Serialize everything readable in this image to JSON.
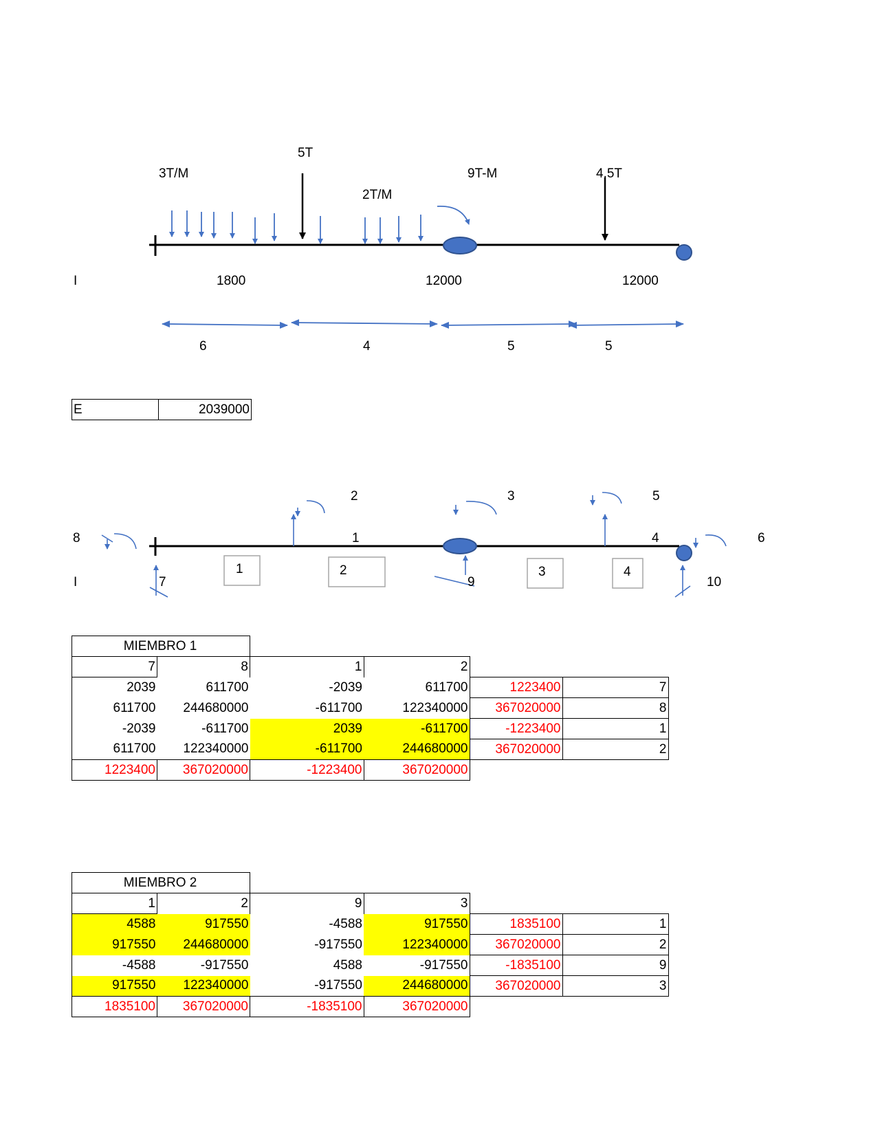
{
  "diagram1": {
    "load_3tm": "3T/M",
    "load_5t": "5T",
    "load_2tm": "2T/M",
    "load_9tm": "9T-M",
    "load_45t": "4.5T",
    "i_label": "I",
    "inertia_1": "1800",
    "inertia_2": "12000",
    "inertia_3": "12000",
    "len_1": "6",
    "len_2": "4",
    "len_3": "5",
    "len_4": "5"
  },
  "e_table": {
    "label": "E",
    "value": "2039000"
  },
  "diagram2": {
    "dof_1": "1",
    "dof_2": "2",
    "dof_3": "3",
    "dof_4": "4",
    "dof_5": "5",
    "dof_6": "6",
    "dof_7": "7",
    "dof_8": "8",
    "dof_9": "9",
    "dof_10": "10",
    "i_label": "I",
    "member_1": "1",
    "member_2": "2",
    "member_3": "3",
    "member_4": "4"
  },
  "member1": {
    "title": "MIEMBRO 1",
    "headers": [
      "7",
      "8",
      "1",
      "2"
    ],
    "rows": [
      [
        "2039",
        "611700",
        "-2039",
        "611700"
      ],
      [
        "611700",
        "244680000",
        "-611700",
        "122340000"
      ],
      [
        "-2039",
        "-611700",
        "2039",
        "-611700"
      ],
      [
        "611700",
        "122340000",
        "-611700",
        "244680000"
      ]
    ],
    "side_values": [
      "1223400",
      "367020000",
      "-1223400",
      "367020000"
    ],
    "side_index": [
      "7",
      "8",
      "1",
      "2"
    ],
    "totals": [
      "1223400",
      "367020000",
      "-1223400",
      "367020000"
    ]
  },
  "member2": {
    "title": "MIEMBRO 2",
    "headers": [
      "1",
      "2",
      "9",
      "3"
    ],
    "rows": [
      [
        "4588",
        "917550",
        "-4588",
        "917550"
      ],
      [
        "917550",
        "244680000",
        "-917550",
        "122340000"
      ],
      [
        "-4588",
        "-917550",
        "4588",
        "-917550"
      ],
      [
        "917550",
        "122340000",
        "-917550",
        "244680000"
      ]
    ],
    "side_values": [
      "1835100",
      "367020000",
      "-1835100",
      "367020000"
    ],
    "side_index": [
      "1",
      "2",
      "9",
      "3"
    ],
    "totals": [
      "1835100",
      "367020000",
      "-1835100",
      "367020000"
    ]
  },
  "colors": {
    "blue": "#4472c4",
    "red": "#ff0000",
    "yellow": "#ffff00"
  }
}
